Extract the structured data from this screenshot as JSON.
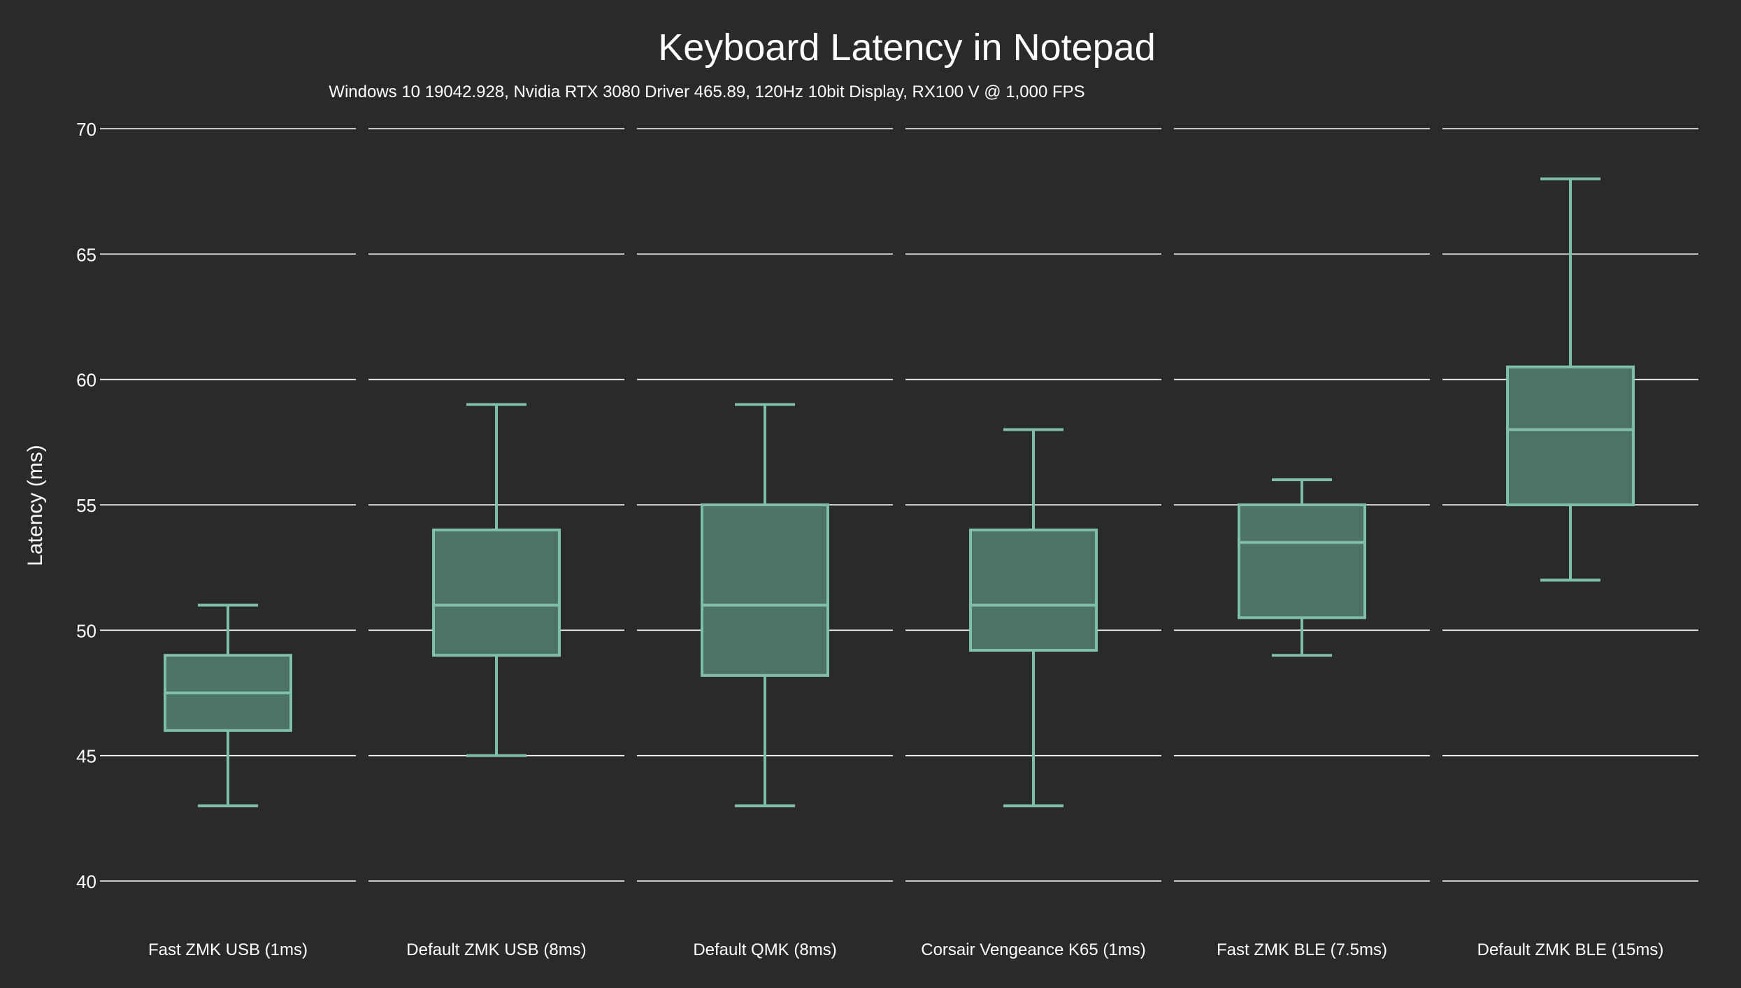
{
  "chart_data": {
    "type": "box",
    "title": "Keyboard Latency in Notepad",
    "subtitle": "Windows 10 19042.928, Nvidia RTX 3080 Driver 465.89, 120Hz 10bit Display, RX100 V @ 1,000 FPS",
    "ylabel": "Latency (ms)",
    "xlabel": "",
    "ylim": [
      40,
      70
    ],
    "yticks": [
      40,
      45,
      50,
      55,
      60,
      65,
      70
    ],
    "grid": true,
    "legend": "none",
    "colors": {
      "background": "#2a2a2a",
      "box_fill": "#4d7365",
      "box_stroke": "#7fbfa8",
      "grid": "#ffffff",
      "text": "#ffffff"
    },
    "categories": [
      "Fast ZMK USB (1ms)",
      "Default ZMK USB (8ms)",
      "Default QMK (8ms)",
      "Corsair Vengeance K65 (1ms)",
      "Fast ZMK BLE (7.5ms)",
      "Default ZMK BLE (15ms)"
    ],
    "boxes": [
      {
        "min": 43,
        "q1": 46,
        "median": 47.5,
        "q3": 49,
        "max": 51
      },
      {
        "min": 45,
        "q1": 49,
        "median": 51,
        "q3": 54,
        "max": 59
      },
      {
        "min": 43,
        "q1": 48.2,
        "median": 51,
        "q3": 55,
        "max": 59
      },
      {
        "min": 43,
        "q1": 49.2,
        "median": 51,
        "q3": 54,
        "max": 58
      },
      {
        "min": 49,
        "q1": 50.5,
        "median": 53.5,
        "q3": 55,
        "max": 56
      },
      {
        "min": 52,
        "q1": 55,
        "median": 58,
        "q3": 60.5,
        "max": 68
      }
    ]
  }
}
